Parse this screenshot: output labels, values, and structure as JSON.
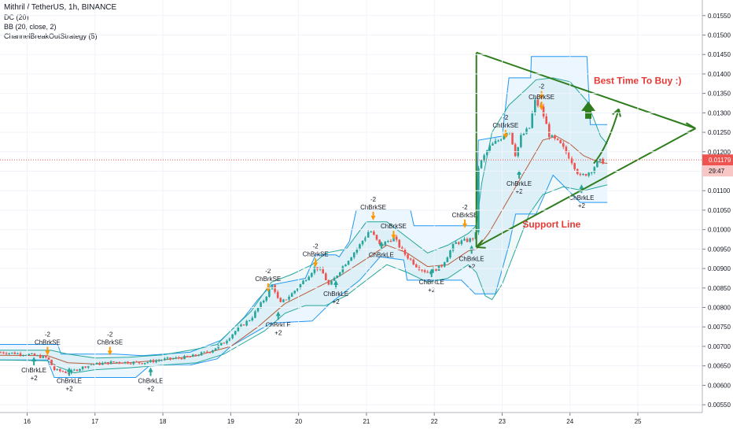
{
  "legend": {
    "title": "Mithril / TetherUS, 1h, BINANCE",
    "indicators": [
      "DC (20)",
      "BB (20, close, 2)",
      "ChannelBreakOutStrategy (5)"
    ]
  },
  "annotations": {
    "best_time": "Best Time To Buy :)",
    "support": "Support Line"
  },
  "price_badges": {
    "last": "0.01179",
    "countdown": "29:47"
  },
  "colors": {
    "up": "#26a69a",
    "down": "#ef5350",
    "dc_band": "#2196f3",
    "bb_band": "#26a69a",
    "basis": "#b85c3c",
    "drawing": "#2e7d1d",
    "text_red": "#e53935",
    "price_line": "#ef5350"
  },
  "signals": [
    {
      "type": "SE",
      "lines": [
        "-2",
        "ChBrkSE"
      ],
      "date": 16.3,
      "price": 0.00705
    },
    {
      "type": "LE",
      "lines": [
        "ChBrkLE",
        "+2"
      ],
      "date": 16.1,
      "price": 0.00645
    },
    {
      "type": "LE",
      "lines": [
        "ChBrkLE",
        "+2"
      ],
      "date": 16.62,
      "price": 0.00618
    },
    {
      "type": "SE",
      "lines": [
        "-2",
        "ChBrkSE"
      ],
      "date": 17.22,
      "price": 0.00705
    },
    {
      "type": "LE",
      "lines": [
        "ChBrkLE",
        "+2"
      ],
      "date": 17.82,
      "price": 0.00618
    },
    {
      "type": "SE",
      "lines": [
        "-2",
        "ChBrkSE"
      ],
      "date": 19.55,
      "price": 0.00868
    },
    {
      "type": "LE",
      "lines": [
        "ChBrkLE",
        "+2"
      ],
      "date": 19.7,
      "price": 0.00762
    },
    {
      "type": "SE",
      "lines": [
        "-2",
        "ChBrkSE"
      ],
      "date": 20.25,
      "price": 0.00932
    },
    {
      "type": "LE",
      "lines": [
        "ChBrkLE",
        "+2"
      ],
      "date": 20.55,
      "price": 0.00842
    },
    {
      "type": "SE",
      "lines": [
        "-2",
        "ChBrkSE"
      ],
      "date": 21.1,
      "price": 0.01052
    },
    {
      "type": "SE",
      "lines": [
        "ChBrkSE"
      ],
      "date": 21.4,
      "price": 0.01003
    },
    {
      "type": "LE",
      "lines": [
        "ChBrkLE"
      ],
      "date": 21.22,
      "price": 0.00942
    },
    {
      "type": "LE",
      "lines": [
        "ChBrkLE",
        "+2"
      ],
      "date": 21.96,
      "price": 0.00872
    },
    {
      "type": "SE",
      "lines": [
        "-2",
        "ChBrkSE"
      ],
      "date": 22.45,
      "price": 0.01032
    },
    {
      "type": "LE",
      "lines": [
        "ChBrkLE",
        "+2"
      ],
      "date": 22.55,
      "price": 0.00932
    },
    {
      "type": "SE",
      "lines": [
        "-2",
        "ChBrkSE"
      ],
      "date": 23.05,
      "price": 0.01262
    },
    {
      "type": "SE",
      "lines": [
        "-2"
      ],
      "date": 23.58,
      "price": 0.01362
    },
    {
      "type": "SE",
      "lines": [
        "ChBrkSE"
      ],
      "date": 23.58,
      "price": 0.01335
    },
    {
      "type": "LE",
      "lines": [
        "ChBrkLE",
        "+2"
      ],
      "date": 23.25,
      "price": 0.01125
    },
    {
      "type": "LE",
      "lines": [
        "ChBrkLE",
        "+2"
      ],
      "date": 24.17,
      "price": 0.01088
    }
  ],
  "chart_data": {
    "type": "candlestick",
    "symbol": "Mithril / TetherUS",
    "interval": "1h",
    "exchange": "BINANCE",
    "last_price": 0.01179,
    "y_ticks": [
      "0.01550",
      "0.01500",
      "0.01450",
      "0.01400",
      "0.01350",
      "0.01300",
      "0.01250",
      "0.01200",
      "0.01150",
      "0.01100",
      "0.01050",
      "0.01000",
      "0.00950",
      "0.00900",
      "0.00850",
      "0.00800",
      "0.00750",
      "0.00700",
      "0.00650",
      "0.00600",
      "0.00550"
    ],
    "x_ticks": [
      "16",
      "17",
      "18",
      "19",
      "20",
      "21",
      "22",
      "23",
      "24",
      "25"
    ],
    "ylim": [
      0.0053,
      0.0159
    ],
    "xlim": [
      15.6,
      25.95
    ],
    "price_path": [
      [
        15.6,
        0.00685
      ],
      [
        16.0,
        0.0068
      ],
      [
        16.3,
        0.0067
      ],
      [
        16.4,
        0.0064
      ],
      [
        16.6,
        0.00632
      ],
      [
        16.9,
        0.00652
      ],
      [
        17.3,
        0.0066
      ],
      [
        17.7,
        0.00658
      ],
      [
        18.0,
        0.00666
      ],
      [
        18.4,
        0.00673
      ],
      [
        18.7,
        0.00688
      ],
      [
        18.9,
        0.0071
      ],
      [
        19.1,
        0.00745
      ],
      [
        19.3,
        0.00772
      ],
      [
        19.5,
        0.00823
      ],
      [
        19.62,
        0.0086
      ],
      [
        19.72,
        0.00808
      ],
      [
        19.9,
        0.00835
      ],
      [
        20.1,
        0.00873
      ],
      [
        20.25,
        0.00905
      ],
      [
        20.35,
        0.0089
      ],
      [
        20.45,
        0.00855
      ],
      [
        20.65,
        0.00905
      ],
      [
        20.9,
        0.0096
      ],
      [
        21.05,
        0.01
      ],
      [
        21.2,
        0.00958
      ],
      [
        21.4,
        0.0098
      ],
      [
        21.55,
        0.0094
      ],
      [
        21.75,
        0.00905
      ],
      [
        21.9,
        0.0089
      ],
      [
        22.1,
        0.00905
      ],
      [
        22.3,
        0.00965
      ],
      [
        22.55,
        0.00975
      ],
      [
        22.62,
        0.0099
      ],
      [
        22.65,
        0.0116
      ],
      [
        22.8,
        0.0121
      ],
      [
        22.95,
        0.0123
      ],
      [
        23.1,
        0.0126
      ],
      [
        23.2,
        0.0119
      ],
      [
        23.28,
        0.0124
      ],
      [
        23.4,
        0.0126
      ],
      [
        23.48,
        0.0133
      ],
      [
        23.58,
        0.0131
      ],
      [
        23.7,
        0.0124
      ],
      [
        23.85,
        0.0122
      ],
      [
        24.0,
        0.01185
      ],
      [
        24.15,
        0.01135
      ],
      [
        24.3,
        0.0115
      ],
      [
        24.42,
        0.01175
      ],
      [
        24.52,
        0.01175
      ]
    ],
    "dc_upper": [
      [
        15.6,
        0.00705
      ],
      [
        16.45,
        0.00705
      ],
      [
        16.5,
        0.0068
      ],
      [
        17.3,
        0.0068
      ],
      [
        17.7,
        0.00676
      ],
      [
        18.4,
        0.00685
      ],
      [
        18.85,
        0.00715
      ],
      [
        19.0,
        0.0074
      ],
      [
        19.2,
        0.00775
      ],
      [
        19.4,
        0.0082
      ],
      [
        19.6,
        0.00858
      ],
      [
        20.1,
        0.00875
      ],
      [
        20.25,
        0.00935
      ],
      [
        20.55,
        0.00935
      ],
      [
        20.6,
        0.0093
      ],
      [
        20.75,
        0.0097
      ],
      [
        20.85,
        0.0105
      ],
      [
        21.65,
        0.0105
      ],
      [
        21.7,
        0.0101
      ],
      [
        22.5,
        0.0101
      ],
      [
        22.62,
        0.0101
      ],
      [
        22.65,
        0.0123
      ],
      [
        23.0,
        0.0124
      ],
      [
        23.1,
        0.0139
      ],
      [
        23.42,
        0.0139
      ],
      [
        23.43,
        0.01445
      ],
      [
        24.25,
        0.01445
      ],
      [
        24.3,
        0.0127
      ],
      [
        24.55,
        0.0127
      ]
    ],
    "dc_lower": [
      [
        15.6,
        0.00665
      ],
      [
        16.3,
        0.00665
      ],
      [
        16.4,
        0.0062
      ],
      [
        17.6,
        0.0062
      ],
      [
        17.8,
        0.0065
      ],
      [
        18.4,
        0.00652
      ],
      [
        18.8,
        0.00668
      ],
      [
        19.0,
        0.007
      ],
      [
        19.3,
        0.0073
      ],
      [
        19.6,
        0.0076
      ],
      [
        20.2,
        0.00765
      ],
      [
        20.45,
        0.00808
      ],
      [
        20.9,
        0.0087
      ],
      [
        21.2,
        0.0093
      ],
      [
        21.55,
        0.00922
      ],
      [
        21.6,
        0.0087
      ],
      [
        22.4,
        0.0087
      ],
      [
        22.6,
        0.00835
      ],
      [
        22.9,
        0.00835
      ],
      [
        23.1,
        0.0096
      ],
      [
        23.2,
        0.0104
      ],
      [
        23.5,
        0.0104
      ],
      [
        23.75,
        0.0114
      ],
      [
        24.15,
        0.0107
      ],
      [
        24.55,
        0.0107
      ]
    ],
    "bb_upper": [
      [
        15.6,
        0.0069
      ],
      [
        16.0,
        0.0069
      ],
      [
        16.35,
        0.0069
      ],
      [
        16.6,
        0.0068
      ],
      [
        17.0,
        0.0067
      ],
      [
        17.5,
        0.00672
      ],
      [
        18.0,
        0.00678
      ],
      [
        18.5,
        0.00693
      ],
      [
        18.8,
        0.00705
      ],
      [
        19.0,
        0.0074
      ],
      [
        19.3,
        0.0079
      ],
      [
        19.6,
        0.00865
      ],
      [
        19.9,
        0.00885
      ],
      [
        20.2,
        0.0091
      ],
      [
        20.4,
        0.0094
      ],
      [
        20.7,
        0.0095
      ],
      [
        21.0,
        0.0102
      ],
      [
        21.3,
        0.0102
      ],
      [
        21.6,
        0.0098
      ],
      [
        21.9,
        0.0094
      ],
      [
        22.2,
        0.0096
      ],
      [
        22.5,
        0.0099
      ],
      [
        22.62,
        0.0101
      ],
      [
        22.7,
        0.0112
      ],
      [
        22.85,
        0.0125
      ],
      [
        23.1,
        0.0132
      ],
      [
        23.35,
        0.0136
      ],
      [
        23.5,
        0.01385
      ],
      [
        23.75,
        0.0139
      ],
      [
        24.0,
        0.0138
      ],
      [
        24.25,
        0.0133
      ],
      [
        24.45,
        0.0124
      ],
      [
        24.55,
        0.0122
      ]
    ],
    "bb_lower": [
      [
        15.6,
        0.00665
      ],
      [
        16.3,
        0.00663
      ],
      [
        16.45,
        0.00648
      ],
      [
        16.7,
        0.00632
      ],
      [
        17.0,
        0.0064
      ],
      [
        17.5,
        0.00645
      ],
      [
        18.0,
        0.00652
      ],
      [
        18.5,
        0.00658
      ],
      [
        18.9,
        0.0068
      ],
      [
        19.2,
        0.0071
      ],
      [
        19.5,
        0.0074
      ],
      [
        19.8,
        0.00785
      ],
      [
        20.1,
        0.00805
      ],
      [
        20.4,
        0.00805
      ],
      [
        20.7,
        0.0083
      ],
      [
        21.0,
        0.0087
      ],
      [
        21.3,
        0.0091
      ],
      [
        21.6,
        0.0089
      ],
      [
        21.9,
        0.00865
      ],
      [
        22.2,
        0.00875
      ],
      [
        22.5,
        0.0091
      ],
      [
        22.62,
        0.0089
      ],
      [
        22.75,
        0.0083
      ],
      [
        22.85,
        0.0082
      ],
      [
        23.0,
        0.0086
      ],
      [
        23.2,
        0.0095
      ],
      [
        23.4,
        0.0104
      ],
      [
        23.6,
        0.0109
      ],
      [
        23.9,
        0.0111
      ],
      [
        24.2,
        0.011
      ],
      [
        24.55,
        0.01115
      ]
    ],
    "bb_basis": [
      [
        15.6,
        0.00677
      ],
      [
        16.3,
        0.00676
      ],
      [
        16.6,
        0.00658
      ],
      [
        17.0,
        0.00655
      ],
      [
        17.5,
        0.00658
      ],
      [
        18.0,
        0.00665
      ],
      [
        18.5,
        0.00676
      ],
      [
        19.0,
        0.007
      ],
      [
        19.4,
        0.0075
      ],
      [
        19.8,
        0.0081
      ],
      [
        20.2,
        0.00845
      ],
      [
        20.6,
        0.0088
      ],
      [
        21.0,
        0.00925
      ],
      [
        21.3,
        0.0096
      ],
      [
        21.6,
        0.0094
      ],
      [
        21.9,
        0.00905
      ],
      [
        22.2,
        0.0091
      ],
      [
        22.5,
        0.00945
      ],
      [
        22.62,
        0.0095
      ],
      [
        22.8,
        0.0099
      ],
      [
        23.0,
        0.0105
      ],
      [
        23.2,
        0.0111
      ],
      [
        23.4,
        0.0117
      ],
      [
        23.6,
        0.0123
      ],
      [
        23.8,
        0.0124
      ],
      [
        24.0,
        0.0122
      ],
      [
        24.2,
        0.0119
      ],
      [
        24.4,
        0.01175
      ],
      [
        24.55,
        0.0117
      ]
    ],
    "drawings": {
      "triangle_vertical": [
        [
          22.62,
          0.01455
        ],
        [
          22.62,
          0.00955
        ]
      ],
      "triangle_upper": [
        [
          22.62,
          0.01455
        ],
        [
          25.85,
          0.0126
        ]
      ],
      "triangle_lower": [
        [
          22.62,
          0.00955
        ],
        [
          25.85,
          0.0126
        ]
      ],
      "up_arrow_curve": [
        [
          24.35,
          0.0117
        ],
        [
          24.55,
          0.0121
        ],
        [
          24.72,
          0.0131
        ]
      ]
    }
  }
}
